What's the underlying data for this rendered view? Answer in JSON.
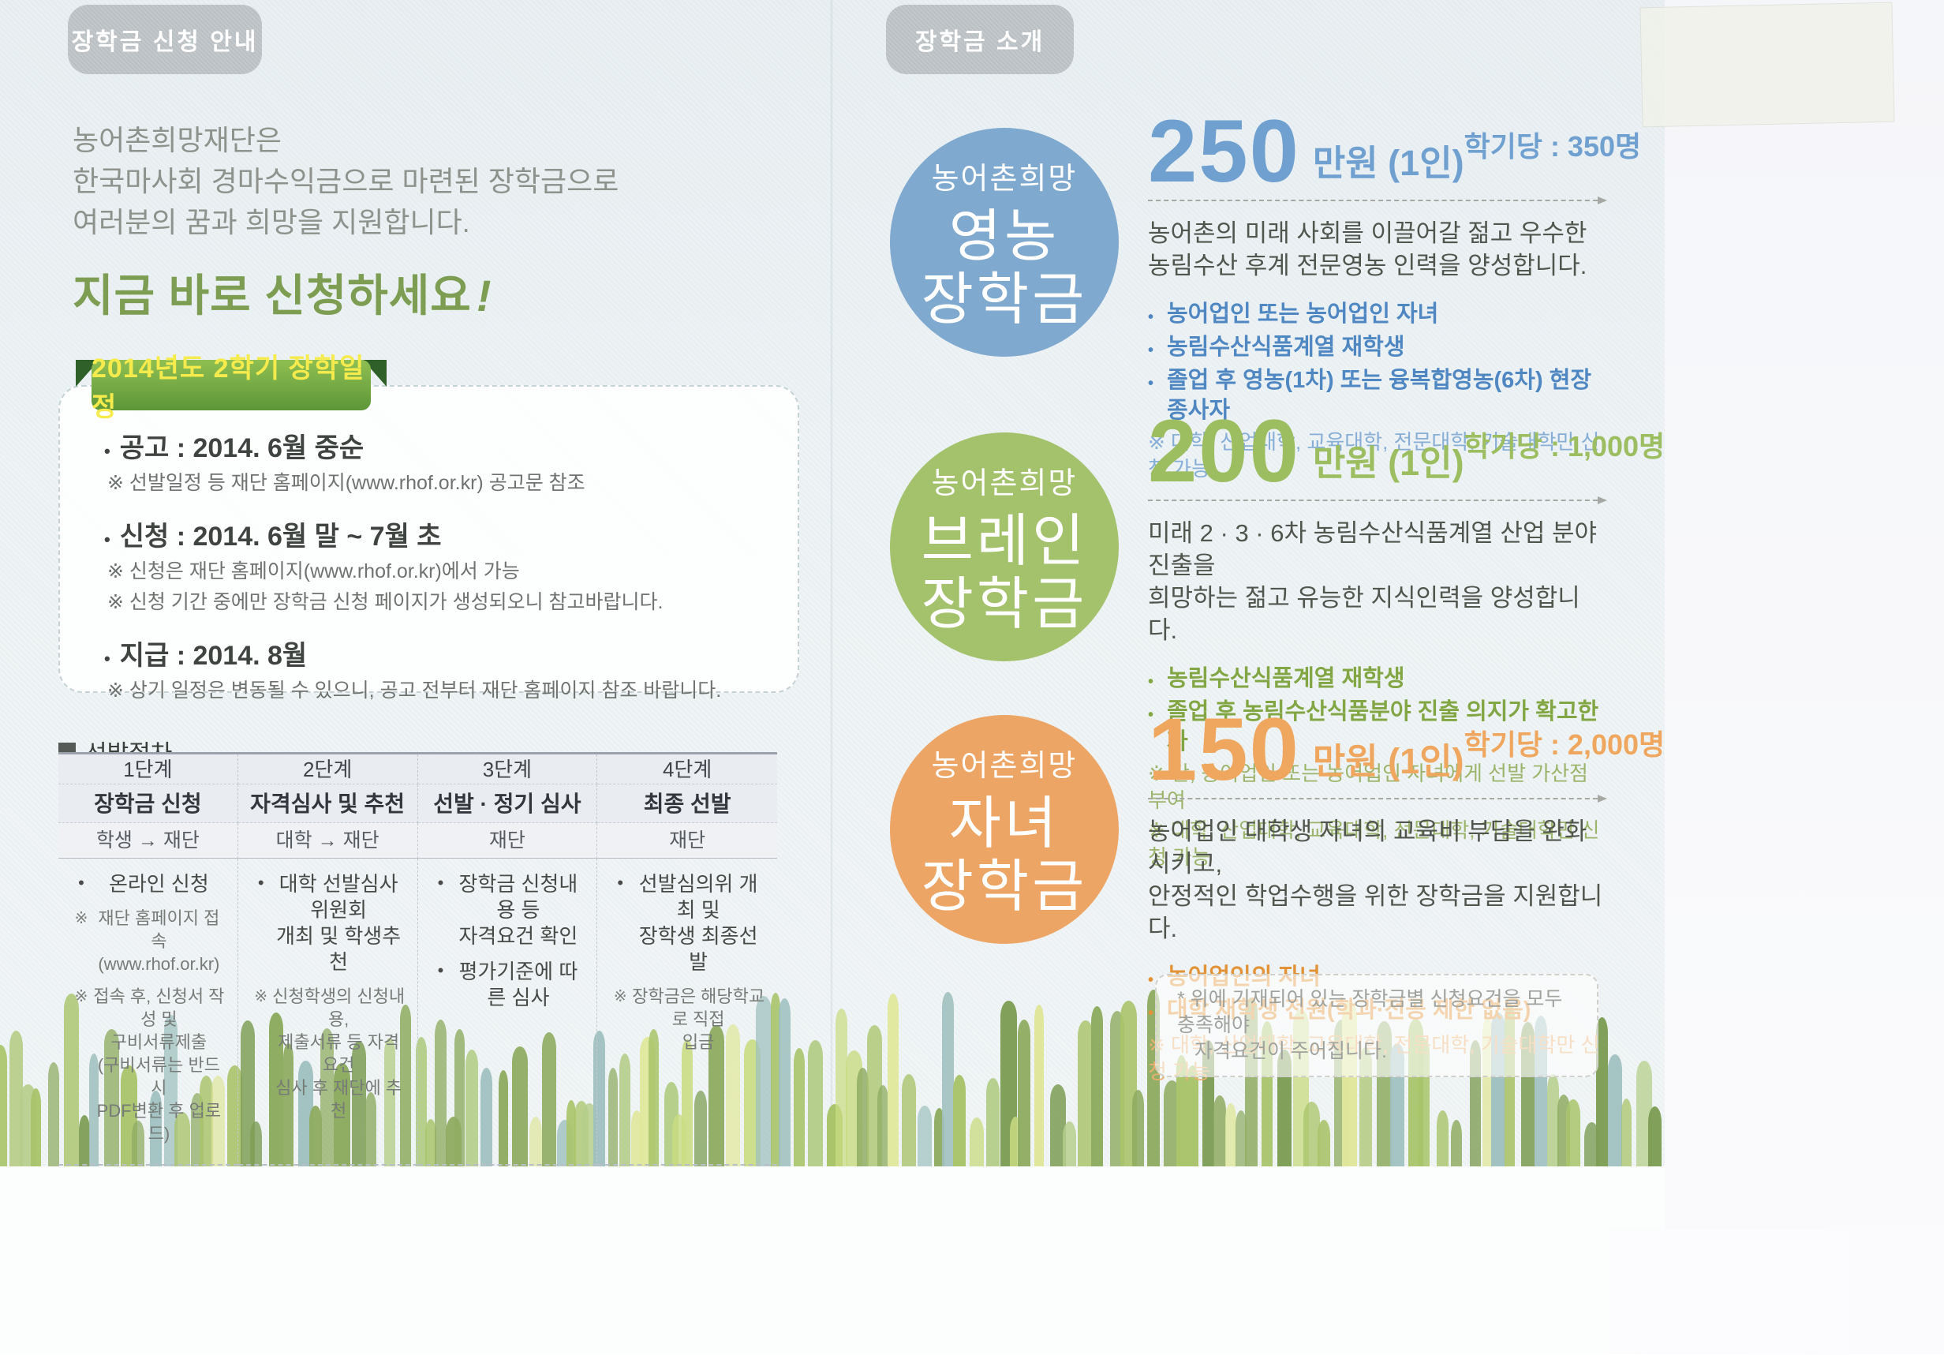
{
  "glyphs": {
    "bullet": "•",
    "note": "※"
  },
  "left_page": {
    "tab": "장학금 신청 안내",
    "intro_lines": [
      "농어촌희망재단은",
      "한국마사회 경마수익금으로 마련된 장학금으로",
      "여러분의 꿈과 희망을 지원합니다."
    ],
    "cta": "지금 바로 신청하세요",
    "cta_bang": "!",
    "schedule": {
      "ribbon": "2014년도 2학기 장학일정",
      "items": [
        {
          "title": "공고 : 2014. 6월 중순",
          "notes": [
            "※ 선발일정 등 재단 홈페이지(www.rhof.or.kr) 공고문 참조"
          ]
        },
        {
          "title": "신청 : 2014. 6월 말 ~ 7월 초",
          "notes": [
            "※ 신청은 재단 홈페이지(www.rhof.or.kr)에서 가능",
            "※ 신청 기간 중에만 장학금 신청 페이지가 생성되오니 참고바랍니다."
          ]
        },
        {
          "title": "지급 : 2014. 8월",
          "notes": [
            "※ 상기 일정은 변동될 수 있으니, 공고 전부터 재단 홈페이지 참조 바랍니다."
          ]
        }
      ]
    },
    "procedure": {
      "heading": "선발절차",
      "columns": [
        {
          "step": "1단계",
          "name": "장학금 신청",
          "actor": "학생 → 재단",
          "items": [
            {
              "kind": "bullet",
              "text": "온라인 신청"
            },
            {
              "kind": "note",
              "text": "재단 홈페이지 접속\n(www.rhof.or.kr)"
            },
            {
              "kind": "note",
              "text": "접속 후, 신청서 작성 및\n구비서류제출\n(구비서류는 반드시\nPDF변환 후 업로드)"
            }
          ]
        },
        {
          "step": "2단계",
          "name": "자격심사 및 추천",
          "actor": "대학 → 재단",
          "items": [
            {
              "kind": "bullet",
              "text": "대학 선발심사위원회\n개최 및 학생추천"
            },
            {
              "kind": "note",
              "text": "신청학생의 신청내용,\n제출서류 등 자격요건\n심사 후 재단에 추천"
            }
          ]
        },
        {
          "step": "3단계",
          "name": "선발 · 정기 심사",
          "actor": "재단",
          "items": [
            {
              "kind": "bullet",
              "text": "장학금 신청내용 등\n자격요건 확인"
            },
            {
              "kind": "bullet",
              "text": "평가기준에 따른 심사"
            }
          ]
        },
        {
          "step": "4단계",
          "name": "최종 선발",
          "actor": "재단",
          "items": [
            {
              "kind": "bullet",
              "text": "선발심의위 개최 및\n장학생 최종선발"
            },
            {
              "kind": "note",
              "text": "장학금은 해당학교로 직접\n입금"
            }
          ]
        }
      ]
    }
  },
  "right_page": {
    "tab": "장학금 소개",
    "sections": [
      {
        "badge_top": "농어촌희망",
        "badge_line1": "영농",
        "badge_line2": "장학금",
        "amount": "250",
        "amount_unit": "만원 (1인)",
        "quota": "학기당 : 350명",
        "desc": [
          "농어촌의 미래 사회를 이끌어갈 젊고 우수한",
          "농림수산 후계 전문영농 인력을 양성합니다."
        ],
        "bullets": [
          "농어업인 또는 농어업인 자녀",
          "농림수산식품계열 재학생",
          "졸업 후 영농(1차) 또는 융복합영농(6차) 현장 종사자"
        ],
        "notes": [
          "※ 대학, 산업대학, 교육대학, 전문대학, 기술대학만 신청 가능"
        ],
        "colors": {
          "circle": "#7fa9ce",
          "amount": "#6fa0d0",
          "bullet": "#4f87c2",
          "note": "#86aed6"
        }
      },
      {
        "badge_top": "농어촌희망",
        "badge_line1": "브레인",
        "badge_line2": "장학금",
        "amount": "200",
        "amount_unit": "만원 (1인)",
        "quota": "학기당 : 1,000명",
        "desc": [
          "미래 2 · 3 · 6차 농림수산식품계열 산업 분야 진출을",
          "희망하는 젊고 유능한 지식인력을 양성합니다."
        ],
        "bullets": [
          "농림수산식품계열 재학생",
          "졸업 후 농림수산식품분야 진출 의지가 확고한 자"
        ],
        "notes": [
          "※ 단, 농어업인 또는 농어업인 자녀에게 선발 가산점 부여",
          "※ 대학, 산업대학, 교육대학, 전문대학, 기술대학만 신청 가능"
        ],
        "colors": {
          "circle": "#a4c16c",
          "amount": "#9cbd60",
          "bullet": "#83a644",
          "note": "#9cb46b"
        }
      },
      {
        "badge_top": "농어촌희망",
        "badge_line1": "자녀",
        "badge_line2": "장학금",
        "amount": "150",
        "amount_unit": "만원 (1인)",
        "quota": "학기당 : 2,000명",
        "desc": [
          "농어업인 대학생 자녀의 교육비 부담을 완화시키고,",
          "안정적인 학업수행을 위한 장학금을 지원합니다."
        ],
        "bullets": [
          "농어업인의 자녀",
          "대학 재학생 전원(학과·전공 제한 없음)"
        ],
        "notes": [
          "※ 대학, 산업대학, 교육대학, 전문대학, 기술대학만 신청 가능"
        ],
        "colors": {
          "circle": "#eda566",
          "amount": "#efa75f",
          "bullet": "#e29338",
          "note": "#eaaf71"
        }
      }
    ],
    "footnote_line1": "* 위에 기재되어 있는 장학금별 신청요건을 모두 충족해야",
    "footnote_line2": "자격요건이 주어집니다."
  },
  "decor": {
    "page_bg": "#eef3f5",
    "tab_bg": "#b9bfc3",
    "ribbon_green": "#5d9638",
    "ribbon_text_yellow": "#f6eb4d",
    "cta_green": "#7d9e52",
    "grass_palette": [
      "#8fac62",
      "#a9c46b",
      "#c9dc82",
      "#e0e79c",
      "#7d9d55",
      "#9fc0bf",
      "#b5ce8a",
      "#8fac62",
      "#a9c46b"
    ]
  }
}
